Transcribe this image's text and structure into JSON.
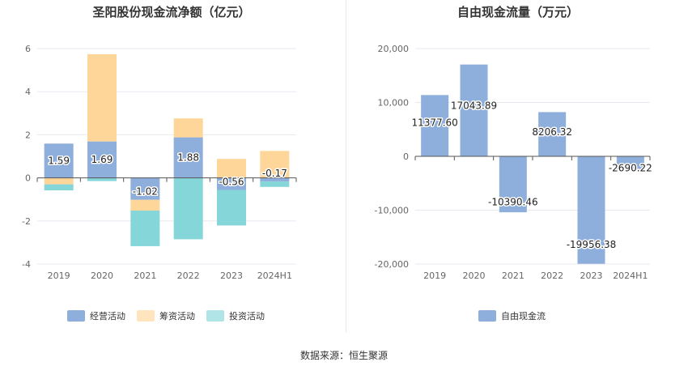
{
  "source_text": "数据来源：恒生聚源",
  "chart_data": [
    {
      "type": "bar",
      "stacked": true,
      "title": "圣阳股份现金流净额（亿元）",
      "categories": [
        "2019",
        "2020",
        "2021",
        "2022",
        "2023",
        "2024H1"
      ],
      "ylim": [
        -4,
        6
      ],
      "yticks": [
        6,
        4,
        2,
        0,
        -2,
        -4
      ],
      "grid": true,
      "legend": "bottom-center",
      "series": [
        {
          "name": "经营活动",
          "color": "#8eaedc",
          "values": [
            1.59,
            1.69,
            -1.02,
            1.88,
            -0.56,
            -0.17
          ],
          "labels": [
            "1.59",
            "1.69",
            "-1.02",
            "1.88",
            "-0.56",
            "-0.17"
          ]
        },
        {
          "name": "筹资活动",
          "color": "#ffd699",
          "values": [
            -0.3,
            4.05,
            -0.5,
            0.88,
            0.88,
            1.25
          ]
        },
        {
          "name": "投资活动",
          "color": "#85d6d8",
          "values": [
            -0.28,
            -0.15,
            -1.65,
            -2.85,
            -1.65,
            -0.25
          ]
        }
      ]
    },
    {
      "type": "bar",
      "title": "自由现金流量（万元）",
      "categories": [
        "2019",
        "2020",
        "2021",
        "2022",
        "2023",
        "2024H1"
      ],
      "ylim": [
        -20000,
        20000
      ],
      "yticks": [
        20000,
        10000,
        0,
        -10000,
        -20000
      ],
      "ytick_labels": [
        "20,000",
        "10,000",
        "0",
        "-10,000",
        "-20,000"
      ],
      "grid": true,
      "legend": "bottom-center",
      "series": [
        {
          "name": "自由现金流",
          "color": "#8eaedc",
          "values": [
            11377.6,
            17043.89,
            -10390.46,
            8206.32,
            -19956.38,
            -2690.22
          ],
          "labels": [
            "11377.60",
            "17043.89",
            "-10390.46",
            "8206.32",
            "-19956.38",
            "-2690.22"
          ]
        }
      ]
    }
  ]
}
